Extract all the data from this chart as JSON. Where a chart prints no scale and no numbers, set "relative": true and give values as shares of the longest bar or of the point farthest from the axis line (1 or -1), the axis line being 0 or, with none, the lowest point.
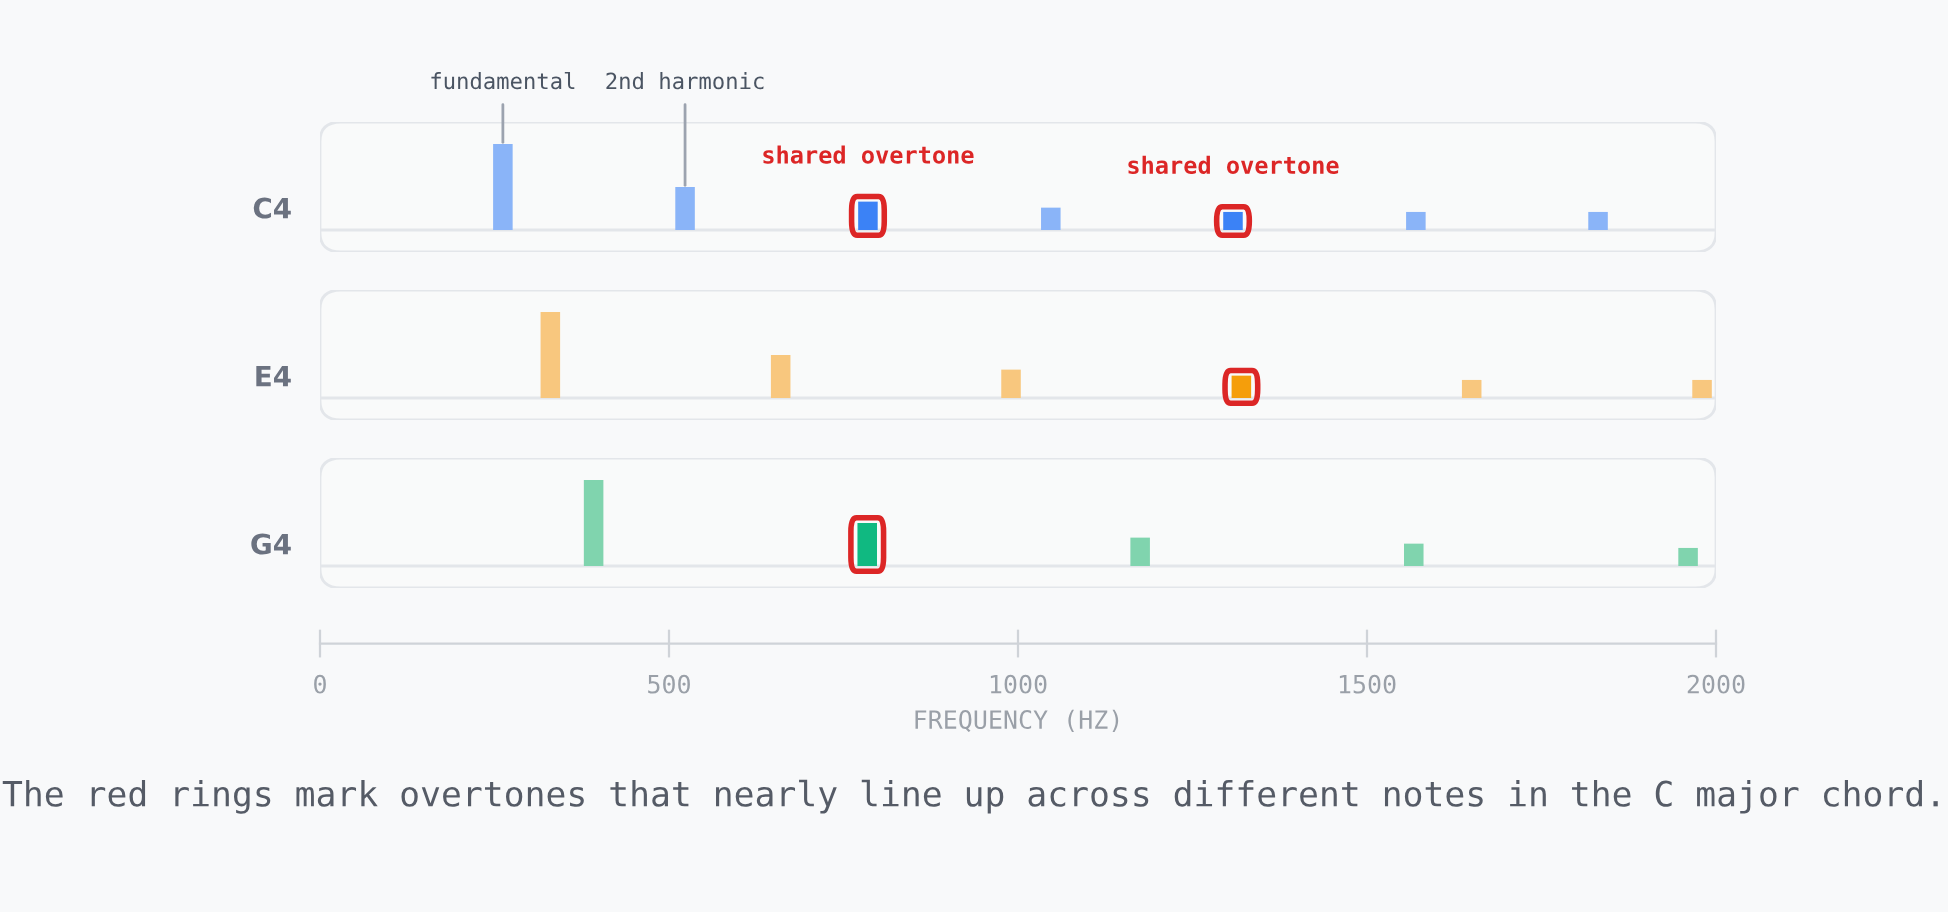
{
  "chart_data": [
    {
      "type": "bar",
      "relative": true,
      "ylabel": "C4",
      "x": [
        262,
        523,
        785,
        1047,
        1308,
        1570,
        1831
      ],
      "xlim": [
        0,
        2000
      ],
      "tick_labels": false,
      "series": [
        {
          "color": "#8ab4f8",
          "colors": [
            "#8ab4f8",
            "#8ab4f8",
            "#3b82f6",
            "#8ab4f8",
            "#3b82f6",
            "#8ab4f8",
            "#8ab4f8"
          ],
          "values": [
            1,
            0.5,
            0.33,
            0.26,
            0.21,
            0.21,
            0.21
          ]
        }
      ],
      "annotations": [
        {
          "text": "fundamental",
          "x": 262,
          "y": 1
        },
        {
          "text": "2nd harmonic",
          "x": 523,
          "y": 0.5
        },
        {
          "text": "shared overtone",
          "x": 785,
          "y": 0.33
        },
        {
          "text": "shared overtone",
          "x": 1308,
          "y": 0.21
        }
      ]
    },
    {
      "type": "bar",
      "relative": true,
      "ylabel": "E4",
      "x": [
        330,
        660,
        990,
        1320,
        1650,
        1980
      ],
      "xlim": [
        0,
        2000
      ],
      "tick_labels": false,
      "series": [
        {
          "color": "#f8c77e",
          "colors": [
            "#f8c77e",
            "#f8c77e",
            "#f8c77e",
            "#f59e0b",
            "#f8c77e",
            "#f8c77e"
          ],
          "values": [
            1,
            0.5,
            0.33,
            0.26,
            0.21,
            0.21
          ]
        }
      ]
    },
    {
      "type": "bar",
      "relative": true,
      "ylabel": "G4",
      "x": [
        392,
        784,
        1175,
        1567,
        1960
      ],
      "xlim": [
        0,
        2000
      ],
      "xticks": [
        0,
        500,
        1000,
        1500,
        2000
      ],
      "tick_labels": "x",
      "xlabel": "FREQUENCY (HZ)",
      "series": [
        {
          "color": "#80d4ae",
          "colors": [
            "#80d4ae",
            "#10b981",
            "#80d4ae",
            "#80d4ae",
            "#80d4ae"
          ],
          "values": [
            1,
            0.5,
            0.33,
            0.26,
            0.21
          ]
        }
      ],
      "annotations": [
        "The red rings mark overtones that nearly line up across different notes in the C major chord."
      ]
    }
  ]
}
